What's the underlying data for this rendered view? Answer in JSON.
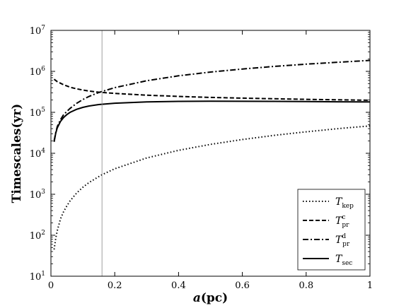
{
  "chart_data": {
    "type": "line",
    "xlabel_italic": "a",
    "xlabel_rest": "(pc)",
    "ylabel": "Timescales(yr)",
    "xlim": [
      0,
      1
    ],
    "ylim": [
      10,
      10000000
    ],
    "yscale": "log",
    "grid": false,
    "legend_position": "bottom-right",
    "x_ticks": [
      {
        "value": 0,
        "label": "0"
      },
      {
        "value": 0.2,
        "label": "0.2"
      },
      {
        "value": 0.4,
        "label": "0.4"
      },
      {
        "value": 0.6,
        "label": "0.6"
      },
      {
        "value": 0.8,
        "label": "0.8"
      },
      {
        "value": 1,
        "label": "1"
      }
    ],
    "y_ticks": [
      {
        "value": 10,
        "base": "10",
        "exp": "1"
      },
      {
        "value": 100,
        "base": "10",
        "exp": "2"
      },
      {
        "value": 1000,
        "base": "10",
        "exp": "3"
      },
      {
        "value": 10000,
        "base": "10",
        "exp": "4"
      },
      {
        "value": 100000,
        "base": "10",
        "exp": "5"
      },
      {
        "value": 1000000,
        "base": "10",
        "exp": "6"
      },
      {
        "value": 10000000,
        "base": "10",
        "exp": "7"
      }
    ],
    "vline": {
      "x": 0.16
    },
    "series": [
      {
        "name": "T_kep",
        "sym": "T",
        "sub": "kep",
        "sup": "",
        "dash": "dotted",
        "color": "#000000",
        "x": [
          0.01,
          0.015,
          0.02,
          0.03,
          0.04,
          0.05,
          0.06,
          0.08,
          0.1,
          0.12,
          0.16,
          0.2,
          0.3,
          0.4,
          0.5,
          0.6,
          0.7,
          0.8,
          0.9,
          1.0
        ],
        "y": [
          45,
          85,
          130,
          250,
          380,
          520,
          690,
          1060,
          1480,
          1950,
          3000,
          4200,
          7700,
          11800,
          16500,
          21700,
          27400,
          33400,
          39900,
          46700
        ]
      },
      {
        "name": "T_pr^c",
        "sym": "T",
        "sub": "pr",
        "sup": "c",
        "dash": "dashed",
        "color": "#000000",
        "x": [
          0.01,
          0.02,
          0.04,
          0.06,
          0.08,
          0.1,
          0.12,
          0.15,
          0.2,
          0.3,
          0.4,
          0.5,
          0.6,
          0.7,
          0.8,
          0.9,
          1.0
        ],
        "y": [
          640000,
          560000,
          470000,
          410000,
          375000,
          350000,
          330000,
          310000,
          290000,
          262000,
          244000,
          231000,
          222000,
          214000,
          208000,
          202000,
          197000
        ]
      },
      {
        "name": "T_pr^d",
        "sym": "T",
        "sub": "pr",
        "sup": "d",
        "dash": "dashdot",
        "color": "#000000",
        "x": [
          0.01,
          0.015,
          0.02,
          0.03,
          0.04,
          0.05,
          0.06,
          0.08,
          0.1,
          0.12,
          0.15,
          0.2,
          0.3,
          0.4,
          0.5,
          0.6,
          0.7,
          0.8,
          0.9,
          1.0
        ],
        "y": [
          20000,
          32000,
          45000,
          66000,
          88000,
          105000,
          125000,
          165000,
          205000,
          245000,
          305000,
          400000,
          590000,
          780000,
          960000,
          1140000,
          1320000,
          1500000,
          1670000,
          1850000
        ]
      },
      {
        "name": "T_sec",
        "sym": "T",
        "sub": "sec",
        "sup": "",
        "dash": "solid",
        "color": "#000000",
        "x": [
          0.01,
          0.015,
          0.02,
          0.03,
          0.04,
          0.05,
          0.06,
          0.08,
          0.1,
          0.12,
          0.15,
          0.2,
          0.3,
          0.4,
          0.5,
          0.6,
          0.7,
          0.8,
          0.9,
          1.0
        ],
        "y": [
          19000,
          31000,
          42000,
          60000,
          75000,
          88000,
          100000,
          118000,
          132000,
          143000,
          155000,
          167000,
          180000,
          185000,
          187000,
          186000,
          185000,
          183000,
          181000,
          179000
        ]
      }
    ]
  }
}
